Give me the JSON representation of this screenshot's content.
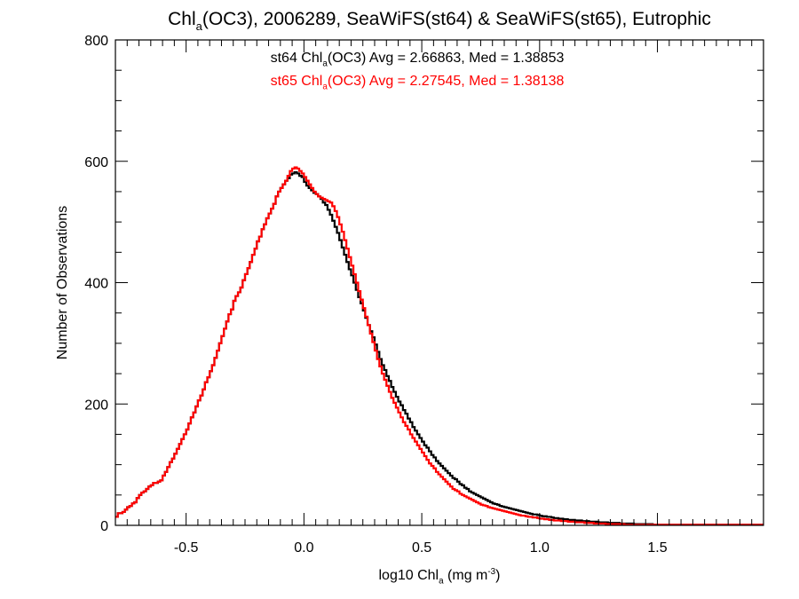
{
  "chart_data": {
    "type": "histogram-step",
    "title": {
      "prefix": "Chl",
      "sub": "a",
      "suffix": "(OC3), 2006289, SeaWiFS(st64) & SeaWiFS(st65), Eutrophic"
    },
    "xlabel": {
      "prefix": "log10 Chl",
      "sub": "a",
      "mid": " (mg m",
      "sup": "-3",
      "suffix": ")"
    },
    "ylabel": "Number of Observations",
    "xlim": [
      -0.8,
      1.95
    ],
    "ylim": [
      0,
      800
    ],
    "xticks": [
      -0.5,
      0.0,
      0.5,
      1.0,
      1.5
    ],
    "xtick_labels": [
      "-0.5",
      "0.0",
      "0.5",
      "1.0",
      "1.5"
    ],
    "yticks": [
      0,
      200,
      400,
      600,
      800
    ],
    "ytick_labels": [
      "0",
      "200",
      "400",
      "600",
      "800"
    ],
    "grid": false,
    "bin_width": 0.01,
    "x_start": -0.8,
    "series": [
      {
        "label_parts": {
          "prefix": "st64 Chl",
          "sub": "a",
          "suffix": "(OC3) Avg = 2.66863, Med = 1.38853"
        },
        "color": "#000000",
        "values": [
          14,
          20,
          20,
          22,
          26,
          30,
          32,
          36,
          38,
          45,
          50,
          54,
          56,
          60,
          64,
          66,
          70,
          70,
          72,
          74,
          82,
          88,
          96,
          104,
          110,
          118,
          126,
          134,
          142,
          150,
          158,
          168,
          178,
          186,
          196,
          206,
          214,
          224,
          236,
          244,
          254,
          264,
          276,
          288,
          300,
          312,
          324,
          336,
          348,
          356,
          370,
          378,
          384,
          392,
          404,
          414,
          424,
          434,
          446,
          456,
          468,
          476,
          488,
          496,
          506,
          514,
          522,
          530,
          542,
          550,
          556,
          562,
          568,
          572,
          578,
          580,
          582,
          580,
          576,
          574,
          566,
          560,
          556,
          552,
          548,
          546,
          542,
          538,
          532,
          528,
          520,
          512,
          502,
          492,
          482,
          470,
          458,
          446,
          434,
          422,
          412,
          400,
          388,
          376,
          366,
          354,
          342,
          330,
          320,
          310,
          298,
          286,
          274,
          264,
          256,
          246,
          238,
          228,
          220,
          212,
          204,
          198,
          190,
          184,
          176,
          170,
          162,
          156,
          150,
          144,
          138,
          132,
          128,
          122,
          116,
          112,
          106,
          102,
          98,
          94,
          90,
          86,
          82,
          78,
          76,
          72,
          68,
          66,
          62,
          60,
          56,
          54,
          52,
          50,
          48,
          46,
          44,
          42,
          40,
          38,
          36,
          35,
          34,
          32,
          31,
          30,
          29,
          28,
          27,
          26,
          25,
          24,
          23,
          22,
          21,
          20,
          19,
          18,
          18,
          17,
          16,
          15,
          15,
          14,
          14,
          13,
          12,
          12,
          11,
          11,
          10,
          10,
          9,
          9,
          9,
          8,
          8,
          8,
          7,
          7,
          7,
          6,
          6,
          6,
          6,
          5,
          5,
          5,
          5,
          4,
          4,
          4,
          4,
          4,
          3,
          3,
          3,
          3,
          3,
          3,
          2,
          2,
          2,
          2,
          2,
          2,
          2,
          2,
          1,
          1,
          1,
          1,
          1,
          1,
          1,
          1,
          1,
          1,
          1,
          1,
          1,
          1,
          1,
          1,
          1,
          1,
          1,
          1,
          1,
          1,
          1,
          1,
          1,
          1,
          1,
          1,
          1,
          1,
          1,
          1,
          1,
          1,
          1,
          1,
          1,
          1,
          1,
          1,
          1,
          1,
          1,
          1,
          1,
          1,
          1,
          1,
          1,
          1,
          1,
          1,
          1,
          1,
          1,
          1,
          1,
          1,
          1,
          1,
          1,
          1,
          1
        ]
      },
      {
        "label_parts": {
          "prefix": "st65 Chl",
          "sub": "a",
          "suffix": "(OC3) Avg = 2.27545, Med = 1.38138"
        },
        "color": "#ff0000",
        "values": [
          14,
          20,
          20,
          22,
          26,
          30,
          32,
          36,
          38,
          45,
          50,
          54,
          56,
          60,
          64,
          66,
          70,
          70,
          72,
          74,
          82,
          88,
          96,
          104,
          110,
          118,
          126,
          134,
          142,
          150,
          158,
          168,
          178,
          186,
          196,
          206,
          214,
          224,
          236,
          244,
          254,
          264,
          276,
          288,
          300,
          312,
          324,
          336,
          348,
          356,
          370,
          378,
          384,
          392,
          404,
          414,
          424,
          434,
          446,
          456,
          468,
          476,
          488,
          496,
          506,
          514,
          522,
          530,
          542,
          550,
          556,
          562,
          568,
          576,
          584,
          588,
          590,
          588,
          584,
          580,
          574,
          568,
          562,
          556,
          550,
          546,
          542,
          540,
          538,
          536,
          534,
          532,
          526,
          518,
          508,
          496,
          484,
          470,
          456,
          442,
          428,
          414,
          400,
          386,
          372,
          358,
          344,
          330,
          316,
          302,
          288,
          274,
          262,
          250,
          240,
          230,
          220,
          210,
          202,
          194,
          186,
          178,
          170,
          164,
          158,
          150,
          144,
          138,
          132,
          126,
          120,
          114,
          108,
          102,
          98,
          94,
          88,
          84,
          80,
          76,
          72,
          68,
          64,
          60,
          58,
          56,
          52,
          50,
          48,
          46,
          44,
          42,
          40,
          38,
          36,
          34,
          33,
          32,
          30,
          29,
          28,
          27,
          26,
          25,
          24,
          23,
          22,
          21,
          20,
          19,
          18,
          17,
          16,
          16,
          15,
          14,
          14,
          13,
          13,
          12,
          11,
          11,
          10,
          10,
          9,
          9,
          8,
          8,
          8,
          7,
          7,
          7,
          6,
          6,
          6,
          5,
          5,
          5,
          5,
          4,
          4,
          4,
          4,
          3,
          3,
          3,
          3,
          3,
          2,
          2,
          2,
          2,
          2,
          2,
          2,
          2,
          1,
          1,
          1,
          1,
          1,
          1,
          1,
          1,
          1,
          1,
          1,
          1,
          1,
          1,
          1,
          1,
          1,
          1,
          1,
          1,
          1,
          1,
          1,
          1,
          1,
          1,
          1,
          1,
          1,
          1,
          1,
          1,
          1,
          1,
          1,
          1,
          1,
          1,
          1,
          1,
          1,
          1,
          1,
          1,
          1,
          1,
          1,
          1,
          1,
          1,
          1,
          1,
          1,
          1,
          1,
          1,
          1,
          1,
          1,
          1,
          1,
          1,
          1,
          1,
          1,
          1,
          1
        ]
      }
    ]
  }
}
